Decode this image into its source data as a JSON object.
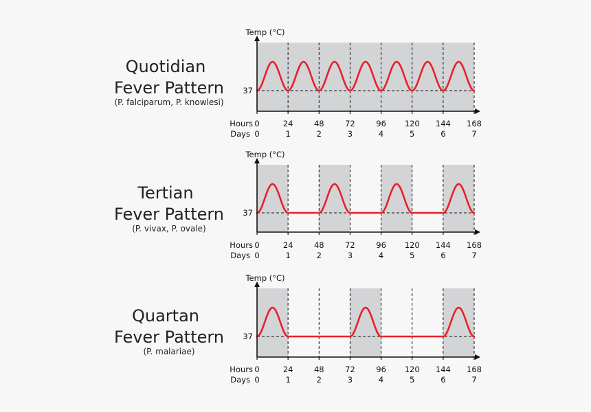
{
  "chart_data": [
    {
      "type": "line",
      "title": "Quotidian",
      "title_line2": "Fever Pattern",
      "subtitle": "(P. falciparum, P. knowlesi)",
      "ylabel": "Temp (°C)",
      "baseline_label": "37",
      "x_row_label": "Hours",
      "day_row_label": "Days",
      "hours": [
        "0",
        "24",
        "48",
        "72",
        "96",
        "120",
        "144",
        "168"
      ],
      "days": [
        "0",
        "1",
        "2",
        "3",
        "4",
        "5",
        "6",
        "7"
      ],
      "xlim": [
        0,
        168
      ],
      "fever_peaks_start_hours": [
        0,
        24,
        48,
        72,
        96,
        120,
        144
      ],
      "fever_duration_hours": 24,
      "shaded_intervals_hours": [
        [
          0,
          168
        ]
      ],
      "grid": "dashed vertical lines every 24 hours",
      "colors": {
        "curve": "#e8202a",
        "shade": "#d3d4d6",
        "axis": "#111111"
      }
    },
    {
      "type": "line",
      "title": "Tertian",
      "title_line2": "Fever Pattern",
      "subtitle": "(P. vivax, P. ovale)",
      "ylabel": "Temp (°C)",
      "baseline_label": "37",
      "x_row_label": "Hours",
      "day_row_label": "Days",
      "hours": [
        "0",
        "24",
        "48",
        "72",
        "96",
        "120",
        "144",
        "168"
      ],
      "days": [
        "0",
        "1",
        "2",
        "3",
        "4",
        "5",
        "6",
        "7"
      ],
      "xlim": [
        0,
        168
      ],
      "fever_peaks_start_hours": [
        0,
        48,
        96,
        144
      ],
      "fever_duration_hours": 24,
      "shaded_intervals_hours": [
        [
          0,
          24
        ],
        [
          48,
          72
        ],
        [
          96,
          120
        ],
        [
          144,
          168
        ]
      ],
      "grid": "dashed vertical lines every 24 hours",
      "colors": {
        "curve": "#e8202a",
        "shade": "#d3d4d6",
        "axis": "#111111"
      }
    },
    {
      "type": "line",
      "title": "Quartan",
      "title_line2": "Fever Pattern",
      "subtitle": "(P. malariae)",
      "ylabel": "Temp (°C)",
      "baseline_label": "37",
      "x_row_label": "Hours",
      "day_row_label": "Days",
      "hours": [
        "0",
        "24",
        "48",
        "72",
        "96",
        "120",
        "144",
        "168"
      ],
      "days": [
        "0",
        "1",
        "2",
        "3",
        "4",
        "5",
        "6",
        "7"
      ],
      "xlim": [
        0,
        168
      ],
      "fever_peaks_start_hours": [
        0,
        72,
        144
      ],
      "fever_duration_hours": 24,
      "shaded_intervals_hours": [
        [
          0,
          24
        ],
        [
          72,
          96
        ],
        [
          144,
          168
        ]
      ],
      "grid": "dashed vertical lines every 24 hours",
      "colors": {
        "curve": "#e8202a",
        "shade": "#d3d4d6",
        "axis": "#111111"
      }
    }
  ]
}
